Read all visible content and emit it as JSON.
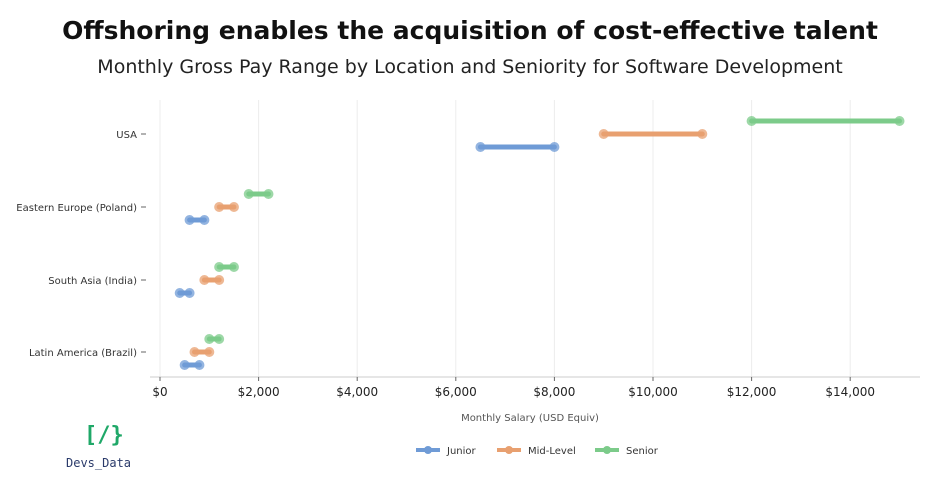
{
  "chart_data": {
    "type": "dumbbell",
    "title": "Offshoring enables the acquisition of cost-effective talent",
    "subtitle": "Monthly Gross Pay Range by Location and Seniority for Software Development",
    "xlabel": "Monthly Salary (USD Equiv)",
    "xlim": [
      0,
      15500
    ],
    "xticks": [
      0,
      2000,
      4000,
      6000,
      8000,
      10000,
      12000,
      14000
    ],
    "xtick_labels": [
      "$0",
      "$2,000",
      "$4,000",
      "$6,000",
      "$8,000",
      "$10,000",
      "$12,000",
      "$14,000"
    ],
    "grid": "vertical",
    "legend_position": "bottom-center",
    "categories": [
      "USA",
      "Eastern Europe (Poland)",
      "South Asia (India)",
      "Latin America (Brazil)"
    ],
    "series": [
      {
        "name": "Junior",
        "color": "#6f9bd6",
        "ranges": [
          [
            6500,
            8000
          ],
          [
            600,
            900
          ],
          [
            400,
            600
          ],
          [
            500,
            800
          ]
        ]
      },
      {
        "name": "Mid-Level",
        "color": "#e8a070",
        "ranges": [
          [
            9000,
            11000
          ],
          [
            1200,
            1500
          ],
          [
            900,
            1200
          ],
          [
            700,
            1000
          ]
        ]
      },
      {
        "name": "Senior",
        "color": "#7ccb8a",
        "ranges": [
          [
            12000,
            15000
          ],
          [
            1800,
            2200
          ],
          [
            1200,
            1500
          ],
          [
            1000,
            1200
          ]
        ]
      }
    ]
  },
  "branding": {
    "logo_mark": "[/}",
    "logo_text": "Devs_Data"
  }
}
